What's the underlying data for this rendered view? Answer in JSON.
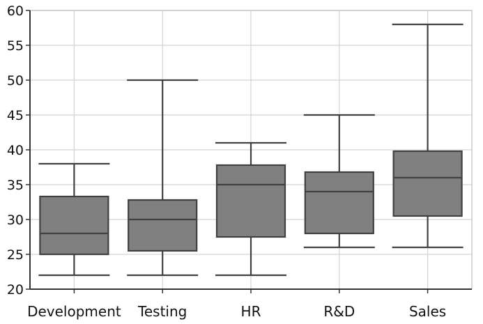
{
  "chart_data": {
    "type": "boxplot",
    "title": "",
    "xlabel": "",
    "ylabel": "",
    "ylim": [
      20,
      60
    ],
    "y_ticks": [
      20,
      25,
      30,
      35,
      40,
      45,
      50,
      55,
      60
    ],
    "grid": true,
    "categories": [
      "Development",
      "Testing",
      "HR",
      "R&D",
      "Sales"
    ],
    "boxes": [
      {
        "category": "Development",
        "min": 22,
        "q1": 25,
        "median": 28,
        "q3": 33.3,
        "max": 38
      },
      {
        "category": "Testing",
        "min": 22,
        "q1": 25.5,
        "median": 30,
        "q3": 32.8,
        "max": 50
      },
      {
        "category": "HR",
        "min": 22,
        "q1": 27.5,
        "median": 35,
        "q3": 37.8,
        "max": 41
      },
      {
        "category": "R&D",
        "min": 26,
        "q1": 28,
        "median": 34,
        "q3": 36.8,
        "max": 45
      },
      {
        "category": "Sales",
        "min": 26,
        "q1": 30.5,
        "median": 36,
        "q3": 39.8,
        "max": 58
      }
    ],
    "colors": {
      "box_fill": "#808080",
      "box_stroke": "#404040",
      "grid": "#d4d4d4",
      "axis": "#333333"
    }
  }
}
